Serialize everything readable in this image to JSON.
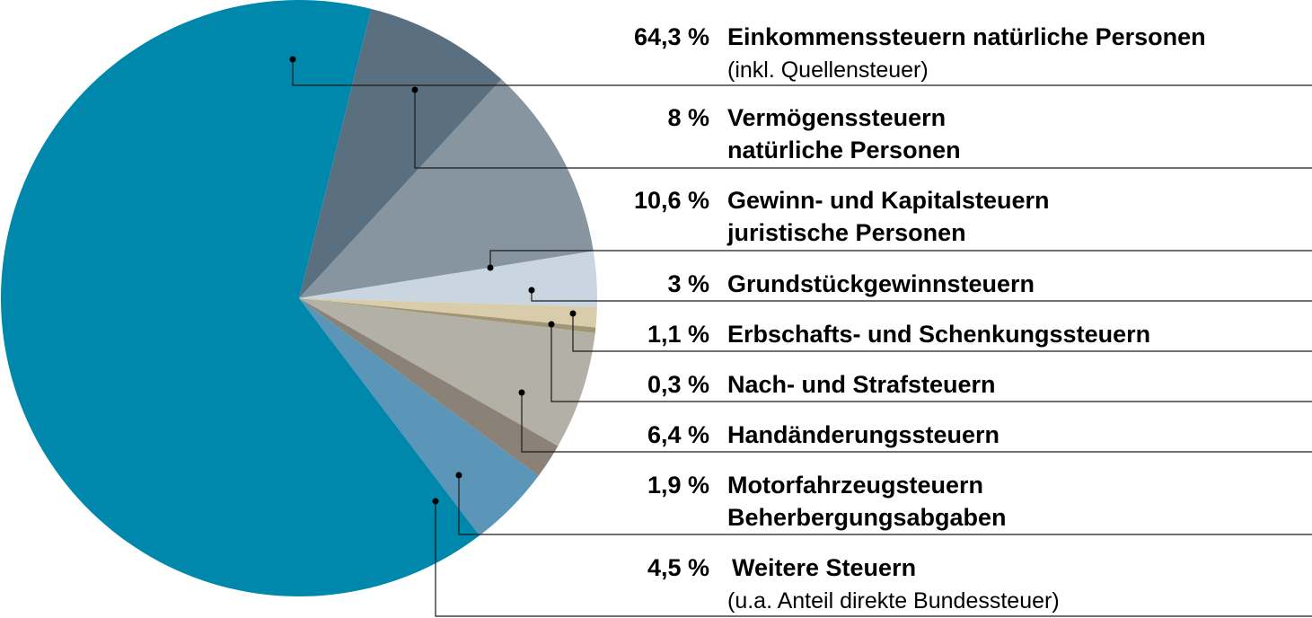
{
  "chart_data": {
    "type": "pie",
    "start_angle_deg": -76,
    "direction": "clockwise",
    "slices": [
      {
        "value": 8.0,
        "pct_label": "8 %",
        "lines": [
          "Vermögenssteuern",
          "natürliche Personen"
        ],
        "sub": "",
        "color": "#5a7081"
      },
      {
        "value": 10.6,
        "pct_label": "10,6 %",
        "lines": [
          "Gewinn- und Kapitalsteuern",
          "juristische Personen"
        ],
        "sub": "",
        "color": "#86959f"
      },
      {
        "value": 3.0,
        "pct_label": "3 %",
        "lines": [
          "Grundstückgewinnsteuern"
        ],
        "sub": "",
        "color": "#c9d6e2"
      },
      {
        "value": 1.1,
        "pct_label": "1,1 %",
        "lines": [
          "Erbschafts- und Schenkungssteuern"
        ],
        "sub": "",
        "color": "#d8ccaa"
      },
      {
        "value": 0.3,
        "pct_label": "0,3 %",
        "lines": [
          "Nach- und Strafsteuern"
        ],
        "sub": "",
        "color": "#a09673"
      },
      {
        "value": 6.4,
        "pct_label": "6,4 %",
        "lines": [
          "Handänderungssteuern"
        ],
        "sub": "",
        "color": "#b3b0a7"
      },
      {
        "value": 1.9,
        "pct_label": "1,9 %",
        "lines": [
          "Motorfahrzeugsteuern",
          "Beherbergungsabgaben"
        ],
        "sub": "",
        "color": "#8a8276"
      },
      {
        "value": 4.5,
        "pct_label": "4,5 %",
        "lines": [
          "Weitere Steuern"
        ],
        "sub": "(u.a. Anteil direkte Bundessteuer)",
        "color": "#5b95b8"
      },
      {
        "value": 64.3,
        "pct_label": "64,3 %",
        "lines": [
          "Einkommenssteuern natürliche Personen"
        ],
        "sub": "(inkl. Quellensteuer)",
        "color": "#0088ac"
      }
    ]
  }
}
